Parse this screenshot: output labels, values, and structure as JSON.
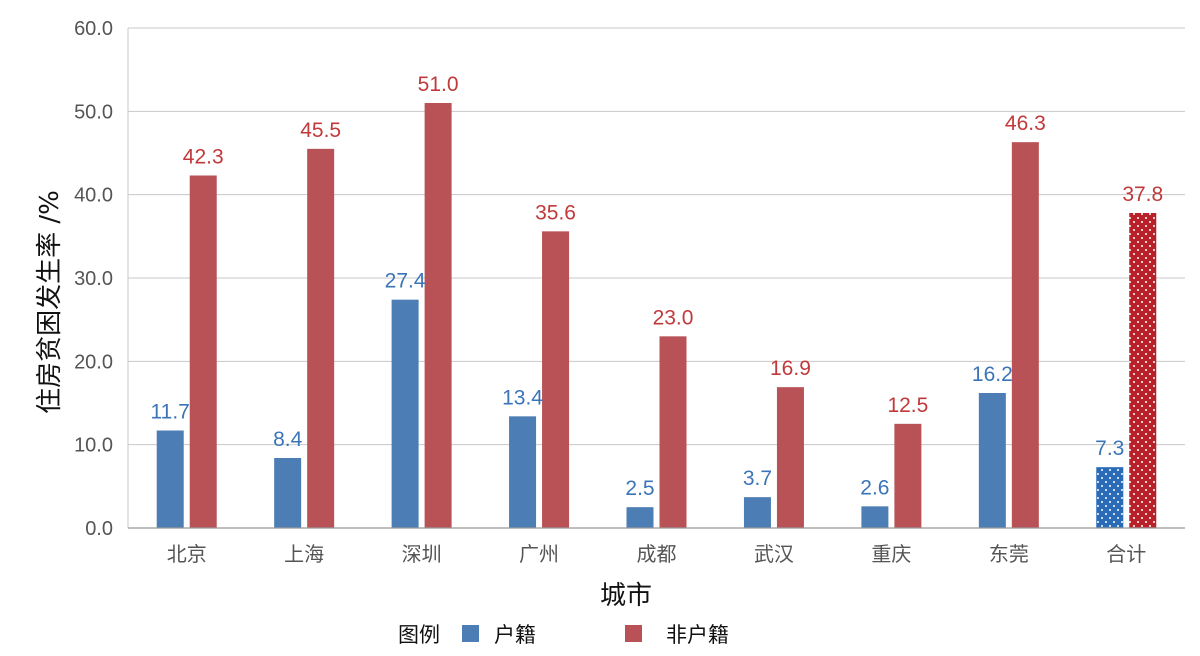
{
  "colors": {
    "hukou": "#4d7db5",
    "non_hukou": "#b85256",
    "hukou_label": "#3b75b8",
    "non_hukou_label": "#c0393b",
    "grid": "#c8c8c8"
  },
  "legend": {
    "title": "图例",
    "items": [
      "户籍",
      "非户籍"
    ]
  },
  "chart_data": {
    "type": "bar",
    "xlabel": "城市",
    "ylabel": "住房贫困发生率 /%",
    "ylim": [
      0,
      60
    ],
    "yticks": [
      "0.0",
      "10.0",
      "20.0",
      "30.0",
      "40.0",
      "50.0",
      "60.0"
    ],
    "categories": [
      "北京",
      "上海",
      "深圳",
      "广州",
      "成都",
      "武汉",
      "重庆",
      "东莞",
      "合计"
    ],
    "series": [
      {
        "name": "户籍",
        "values": [
          11.7,
          8.4,
          27.4,
          13.4,
          2.5,
          3.7,
          2.6,
          16.2,
          7.3
        ],
        "labels": [
          "11.7",
          "8.4",
          "27.4",
          "13.4",
          "2.5",
          "3.7",
          "2.6",
          "16.2",
          "7.3"
        ]
      },
      {
        "name": "非户籍",
        "values": [
          42.3,
          45.5,
          51.0,
          35.6,
          23.0,
          16.9,
          12.5,
          46.3,
          37.8
        ],
        "labels": [
          "42.3",
          "45.5",
          "51.0",
          "35.6",
          "23.0",
          "16.9",
          "12.5",
          "46.3",
          "37.8"
        ]
      }
    ],
    "patterned_category": "合计",
    "grid": true,
    "legend_position": "bottom-center"
  }
}
